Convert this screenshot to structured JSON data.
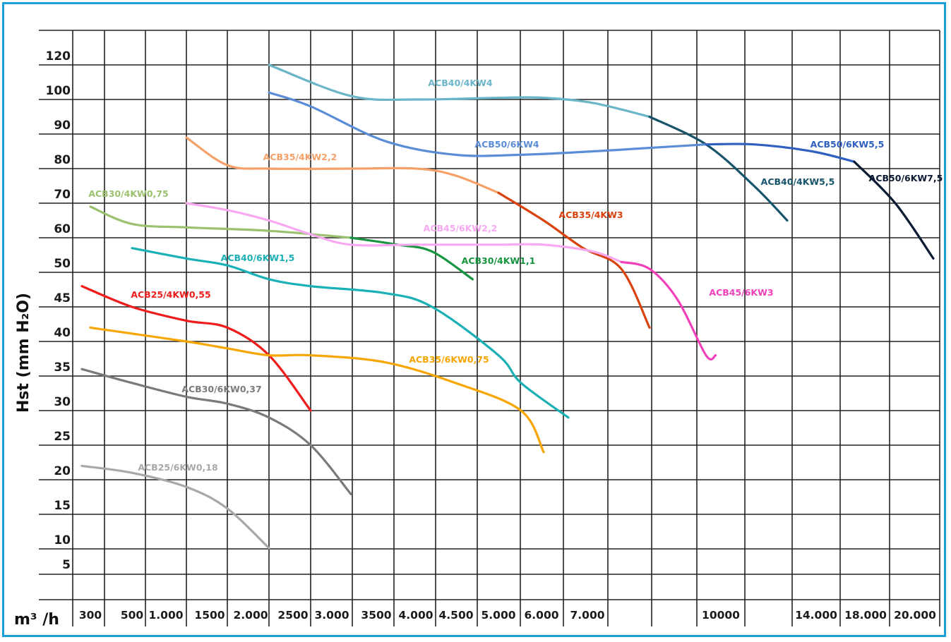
{
  "chart_data": {
    "type": "line",
    "title": "",
    "xlabel": "m³ /h",
    "ylabel": "Hst  (mm H₂O)",
    "grid": true,
    "x_ticks": [
      "300",
      "500",
      "1.000",
      "1500",
      "2.000",
      "2500",
      "3.000",
      "3500",
      "4.000",
      "4.500",
      "5.000",
      "6.000",
      "7.000",
      "",
      "10000",
      "",
      "14.000",
      "18.000",
      "20.000"
    ],
    "y_ticks": [
      120,
      100,
      90,
      80,
      70,
      60,
      50,
      45,
      40,
      35,
      30,
      25,
      20,
      15,
      10,
      5
    ],
    "series": [
      {
        "name": "ACB40/4KW4",
        "color": "#6bb5c9",
        "points": [
          [
            2000,
            120
          ],
          [
            3000,
            102
          ],
          [
            4000,
            100
          ],
          [
            5000,
            101
          ],
          [
            6000,
            101
          ],
          [
            7000,
            99
          ],
          [
            8000,
            95
          ]
        ]
      },
      {
        "name": "ACB40/4KW5,5",
        "color": "#17536a",
        "points": [
          [
            8000,
            95
          ],
          [
            10000,
            87
          ],
          [
            12000,
            75
          ],
          [
            13000,
            65
          ]
        ]
      },
      {
        "name": "ACB50/6KW4",
        "color": "#5b8dd6",
        "points": [
          [
            2000,
            104
          ],
          [
            2500,
            98
          ],
          [
            3500,
            88
          ],
          [
            4500,
            84
          ],
          [
            5500,
            84
          ],
          [
            7000,
            85
          ],
          [
            8000,
            86
          ],
          [
            10000,
            87
          ]
        ]
      },
      {
        "name": "ACB50/6KW5,5",
        "color": "#2f5fbf",
        "points": [
          [
            10000,
            87
          ],
          [
            12000,
            87
          ],
          [
            14000,
            85
          ],
          [
            16000,
            82
          ]
        ]
      },
      {
        "name": "ACB50/6KW7,5",
        "color": "#0d1a33",
        "points": [
          [
            16000,
            82
          ],
          [
            18000,
            70
          ],
          [
            20000,
            54
          ]
        ]
      },
      {
        "name": "ACB35/4KW2,2",
        "color": "#f5a068",
        "points": [
          [
            1000,
            89
          ],
          [
            1500,
            81
          ],
          [
            2000,
            80
          ],
          [
            3000,
            80
          ],
          [
            4000,
            80
          ],
          [
            4500,
            78
          ],
          [
            5000,
            73
          ]
        ]
      },
      {
        "name": "ACB35/4KW3",
        "color": "#d9420c",
        "points": [
          [
            5000,
            73
          ],
          [
            6000,
            65
          ],
          [
            6800,
            57
          ],
          [
            7500,
            51
          ],
          [
            8000,
            42
          ]
        ]
      },
      {
        "name": "ACB30/4KW0,75",
        "color": "#9bc06e",
        "points": [
          [
            300,
            69
          ],
          [
            500,
            64
          ],
          [
            1000,
            63
          ],
          [
            2000,
            62
          ],
          [
            3000,
            60
          ]
        ]
      },
      {
        "name": "ACB30/4KW1,1",
        "color": "#179440",
        "points": [
          [
            3000,
            60
          ],
          [
            3700,
            58
          ],
          [
            4200,
            56
          ],
          [
            4700,
            49
          ]
        ]
      },
      {
        "name": "ACB45/6KW2,2",
        "color": "#f7a8f0",
        "points": [
          [
            1000,
            70
          ],
          [
            1500,
            68
          ],
          [
            2000,
            65
          ],
          [
            2500,
            61
          ],
          [
            3000,
            58
          ],
          [
            4000,
            58
          ],
          [
            5000,
            58
          ],
          [
            6000,
            58
          ],
          [
            7000,
            56
          ],
          [
            7500,
            53
          ]
        ]
      },
      {
        "name": "ACB45/6KW3",
        "color": "#f23fba",
        "points": [
          [
            7500,
            53
          ],
          [
            8000,
            51
          ],
          [
            9000,
            46
          ],
          [
            10000,
            38
          ],
          [
            10400,
            38
          ]
        ]
      },
      {
        "name": "ACB40/6KW1,5",
        "color": "#1ab0b5",
        "points": [
          [
            500,
            57
          ],
          [
            1000,
            54
          ],
          [
            1500,
            52
          ],
          [
            2000,
            49
          ],
          [
            2500,
            48
          ],
          [
            3500,
            47
          ],
          [
            4200,
            45
          ],
          [
            5000,
            38
          ],
          [
            5500,
            34
          ],
          [
            6500,
            29
          ]
        ]
      },
      {
        "name": "ACB25/4KW0,55",
        "color": "#ee1c1c",
        "points": [
          [
            250,
            48
          ],
          [
            500,
            45
          ],
          [
            1000,
            43
          ],
          [
            1500,
            42
          ],
          [
            2000,
            38
          ],
          [
            2500,
            30
          ]
        ]
      },
      {
        "name": "ACB35/6KW0,75",
        "color": "#f7a500",
        "points": [
          [
            300,
            42
          ],
          [
            1000,
            40
          ],
          [
            1500,
            39
          ],
          [
            2000,
            38
          ],
          [
            2500,
            38
          ],
          [
            3500,
            37
          ],
          [
            4500,
            34
          ],
          [
            5500,
            30
          ],
          [
            6000,
            24
          ]
        ]
      },
      {
        "name": "ACB30/6KW0,37",
        "color": "#7a7a7a",
        "points": [
          [
            250,
            36
          ],
          [
            500,
            34
          ],
          [
            1000,
            32
          ],
          [
            1500,
            31
          ],
          [
            2000,
            29
          ],
          [
            2500,
            25
          ],
          [
            3000,
            18
          ]
        ]
      },
      {
        "name": "ACB25/6KW0,18",
        "color": "#a8a8a8",
        "points": [
          [
            250,
            22
          ],
          [
            500,
            21
          ],
          [
            1000,
            19
          ],
          [
            1500,
            16
          ],
          [
            2000,
            10
          ]
        ]
      }
    ]
  }
}
